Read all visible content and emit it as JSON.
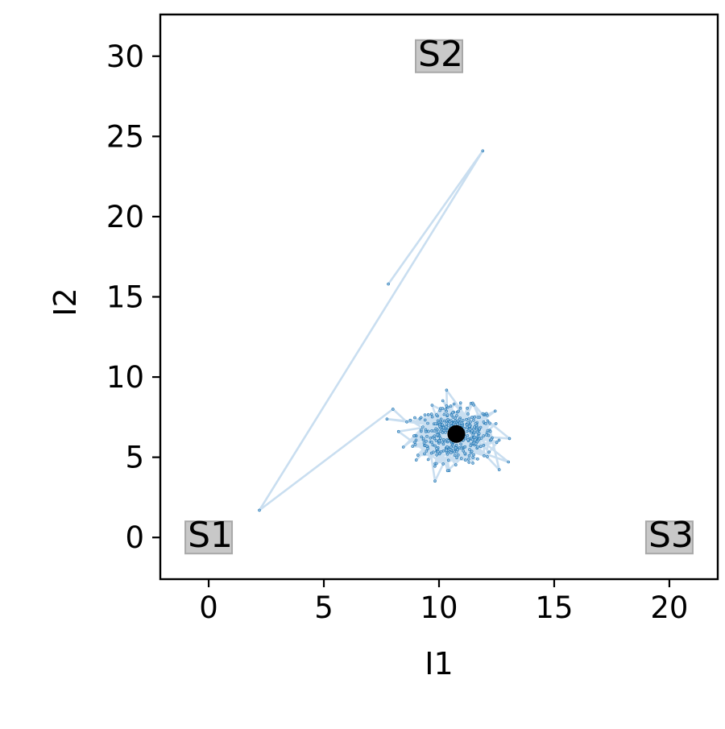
{
  "chart_data": {
    "type": "scatter",
    "xlabel": "I1",
    "ylabel": "I2",
    "xlim": [
      -2.1,
      22.1
    ],
    "ylim": [
      -2.6,
      32.6
    ],
    "xticks": [
      0,
      5,
      10,
      15,
      20
    ],
    "yticks": [
      0,
      5,
      10,
      15,
      20,
      25,
      30
    ],
    "grid": false,
    "legend": false,
    "annotations": [
      {
        "text": "S1",
        "x": 0,
        "y": 0
      },
      {
        "text": "S2",
        "x": 10,
        "y": 30
      },
      {
        "text": "S3",
        "x": 20,
        "y": 0
      }
    ],
    "series": [
      {
        "kind": "trajectory",
        "start_path": [
          {
            "x": 7.8,
            "y": 15.8
          },
          {
            "x": 11.9,
            "y": 24.1
          },
          {
            "x": 2.2,
            "y": 1.7
          },
          {
            "x": 8.0,
            "y": 8.0
          },
          {
            "x": 8.6,
            "y": 7.2
          }
        ],
        "cloud": {
          "center_x": 10.7,
          "center_y": 6.4,
          "spread_x": 0.85,
          "spread_y": 0.85,
          "count": 420
        }
      },
      {
        "kind": "fixed-point",
        "points": [
          {
            "x": 10.75,
            "y": 6.45
          }
        ]
      }
    ],
    "colors": {
      "trajectory_line": "#c9def0",
      "points": "#1f77b4",
      "fixed_point": "#000000",
      "annotation_box": "#c8c8c8",
      "annotation_box_edge": "#a8a8a8"
    }
  }
}
